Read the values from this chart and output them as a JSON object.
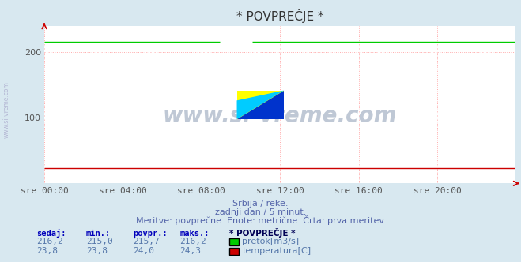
{
  "title": "* POVPREČJE *",
  "bg_color": "#d8e8f0",
  "plot_bg_color": "#ffffff",
  "grid_color": "#ffaaaa",
  "grid_linestyle": ":",
  "x_labels": [
    "sre 00:00",
    "sre 04:00",
    "sre 08:00",
    "sre 12:00",
    "sre 16:00",
    "sre 20:00"
  ],
  "x_ticks": [
    0,
    4,
    8,
    12,
    16,
    20
  ],
  "x_min": 0,
  "x_max": 24,
  "y_min": 0,
  "y_max": 240,
  "y_ticks": [
    100,
    200
  ],
  "flow_color": "#00cc00",
  "temp_color": "#cc0000",
  "flow_value": 216.2,
  "temp_value": 23.8,
  "flow_gap_start": 9.0,
  "flow_gap_end": 10.5,
  "watermark": "www.si-vreme.com",
  "ylabel_text": "www.si-vreme.com",
  "subtitle1": "Srbija / reke.",
  "subtitle2": "zadnji dan / 5 minut.",
  "subtitle3": "Meritve: povprečne  Enote: metrične  Črta: prva meritev",
  "legend_title": "* POVPREČJE *",
  "table_headers": [
    "sedaj:",
    "min.:",
    "povpr.:",
    "maks.:"
  ],
  "flow_row": [
    "216,2",
    "215,0",
    "215,7",
    "216,2"
  ],
  "temp_row": [
    "23,8",
    "23,8",
    "24,0",
    "24,3"
  ],
  "flow_label": "pretok[m3/s]",
  "temp_label": "temperatura[C]",
  "title_fontsize": 11,
  "axis_label_fontsize": 8
}
